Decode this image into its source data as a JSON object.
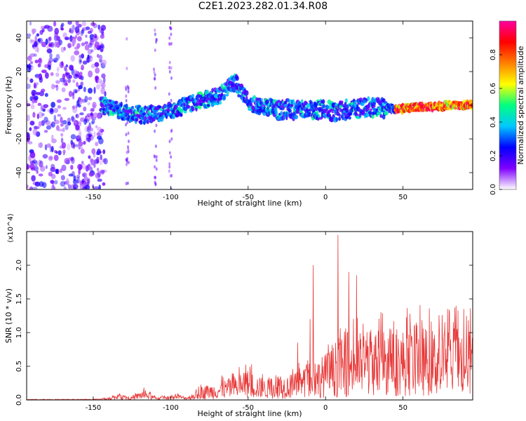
{
  "title": "C2E1.2023.282.01.34.R08",
  "chart_data": [
    {
      "type": "heatmap",
      "title": "",
      "xlabel": "Height of straight line (km)",
      "ylabel": "Frequency (Hz)",
      "xlim": [
        -193,
        95
      ],
      "ylim": [
        -50,
        50
      ],
      "xticks": [
        -150,
        -100,
        -50,
        0,
        50
      ],
      "yticks": [
        -40,
        -20,
        0,
        20,
        40
      ],
      "colorbar": {
        "label": "Normalized spectral amplitude",
        "range": [
          0,
          1
        ],
        "ticks": [
          0.0,
          0.2,
          0.4,
          0.6,
          0.8
        ],
        "colormap": [
          "#ffffff",
          "#8000ff",
          "#0000ff",
          "#00c8ff",
          "#00ff80",
          "#ffff00",
          "#ff8000",
          "#ff0000",
          "#ff00a0"
        ]
      },
      "trace": {
        "x": [
          -145,
          -130,
          -118,
          -105,
          -95,
          -85,
          -75,
          -68,
          -62,
          -58,
          -55,
          -50,
          -45,
          -40,
          -35,
          -30,
          -25,
          -20,
          -15,
          -10,
          -5,
          0,
          5,
          10,
          20,
          30,
          40,
          50,
          60,
          70,
          80,
          90,
          95
        ],
        "y": [
          0,
          -4,
          -6,
          -4,
          -2,
          2,
          4,
          6,
          12,
          14,
          8,
          2,
          0,
          -1,
          -2,
          -3,
          -2,
          -3,
          -2,
          -3,
          -3,
          -2,
          -4,
          -3,
          -2,
          -1,
          -2,
          -2,
          -1,
          -1,
          0,
          0,
          0
        ]
      },
      "noise_region_x": [
        -193,
        -142
      ],
      "grid": false
    },
    {
      "type": "line",
      "title": "",
      "xlabel": "Height of straight line (km)",
      "ylabel": "SNR (10 * v/v)",
      "y_multiplier": "(x10^4)",
      "xlim": [
        -193,
        95
      ],
      "ylim": [
        0,
        2.5
      ],
      "xticks": [
        -150,
        -100,
        -50,
        0,
        50
      ],
      "yticks": [
        0.0,
        0.5,
        1.0,
        1.5,
        2.0
      ],
      "envelope": {
        "x": [
          -193,
          -150,
          -140,
          -135,
          -125,
          -118,
          -110,
          -100,
          -95,
          -90,
          -85,
          -80,
          -70,
          -60,
          -50,
          -40,
          -30,
          -20,
          -10,
          0,
          10,
          20,
          30,
          40,
          50,
          60,
          70,
          80,
          95
        ],
        "y": [
          0.01,
          0.01,
          0.03,
          0.08,
          0.05,
          0.15,
          0.05,
          0.05,
          0.08,
          0.05,
          0.1,
          0.2,
          0.25,
          0.35,
          0.45,
          0.3,
          0.35,
          0.4,
          0.5,
          0.7,
          0.9,
          1.0,
          1.05,
          1.0,
          1.05,
          1.1,
          1.05,
          1.1,
          1.05
        ]
      },
      "peaks": [
        {
          "x": -18,
          "y": 0.85
        },
        {
          "x": -10,
          "y": 1.2
        },
        {
          "x": -8,
          "y": 2.0
        },
        {
          "x": 8,
          "y": 2.45
        },
        {
          "x": 15,
          "y": 1.9
        },
        {
          "x": 20,
          "y": 1.85
        }
      ],
      "color": "#e83a3a",
      "grid": false
    }
  ]
}
